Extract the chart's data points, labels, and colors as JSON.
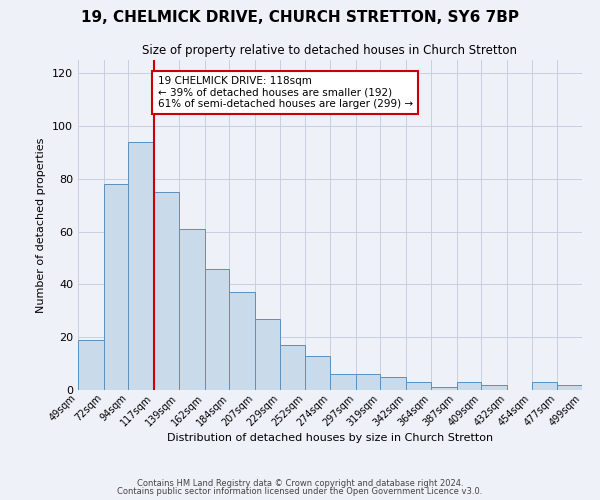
{
  "title": "19, CHELMICK DRIVE, CHURCH STRETTON, SY6 7BP",
  "subtitle": "Size of property relative to detached houses in Church Stretton",
  "xlabel": "Distribution of detached houses by size in Church Stretton",
  "ylabel": "Number of detached properties",
  "bin_edges": [
    49,
    72,
    94,
    117,
    139,
    162,
    184,
    207,
    229,
    252,
    274,
    297,
    319,
    342,
    364,
    387,
    409,
    432,
    454,
    477,
    499
  ],
  "bar_heights": [
    19,
    78,
    94,
    75,
    61,
    46,
    37,
    27,
    17,
    13,
    6,
    6,
    5,
    3,
    1,
    3,
    2,
    0,
    3,
    2
  ],
  "tick_labels": [
    "49sqm",
    "72sqm",
    "94sqm",
    "117sqm",
    "139sqm",
    "162sqm",
    "184sqm",
    "207sqm",
    "229sqm",
    "252sqm",
    "274sqm",
    "297sqm",
    "319sqm",
    "342sqm",
    "364sqm",
    "387sqm",
    "409sqm",
    "432sqm",
    "454sqm",
    "477sqm",
    "499sqm"
  ],
  "bar_color": "#c9daea",
  "bar_edge_color": "#5a8fbf",
  "vline_x": 117,
  "vline_color": "#cc0000",
  "annotation_text": "19 CHELMICK DRIVE: 118sqm\n← 39% of detached houses are smaller (192)\n61% of semi-detached houses are larger (299) →",
  "annotation_box_color": "#ffffff",
  "annotation_border_color": "#cc0000",
  "ylim": [
    0,
    125
  ],
  "yticks": [
    0,
    20,
    40,
    60,
    80,
    100,
    120
  ],
  "footer1": "Contains HM Land Registry data © Crown copyright and database right 2024.",
  "footer2": "Contains public sector information licensed under the Open Government Licence v3.0.",
  "background_color": "#eef2f8",
  "plot_bg_color": "#eef2f8",
  "grid_color": "#c8d0de"
}
